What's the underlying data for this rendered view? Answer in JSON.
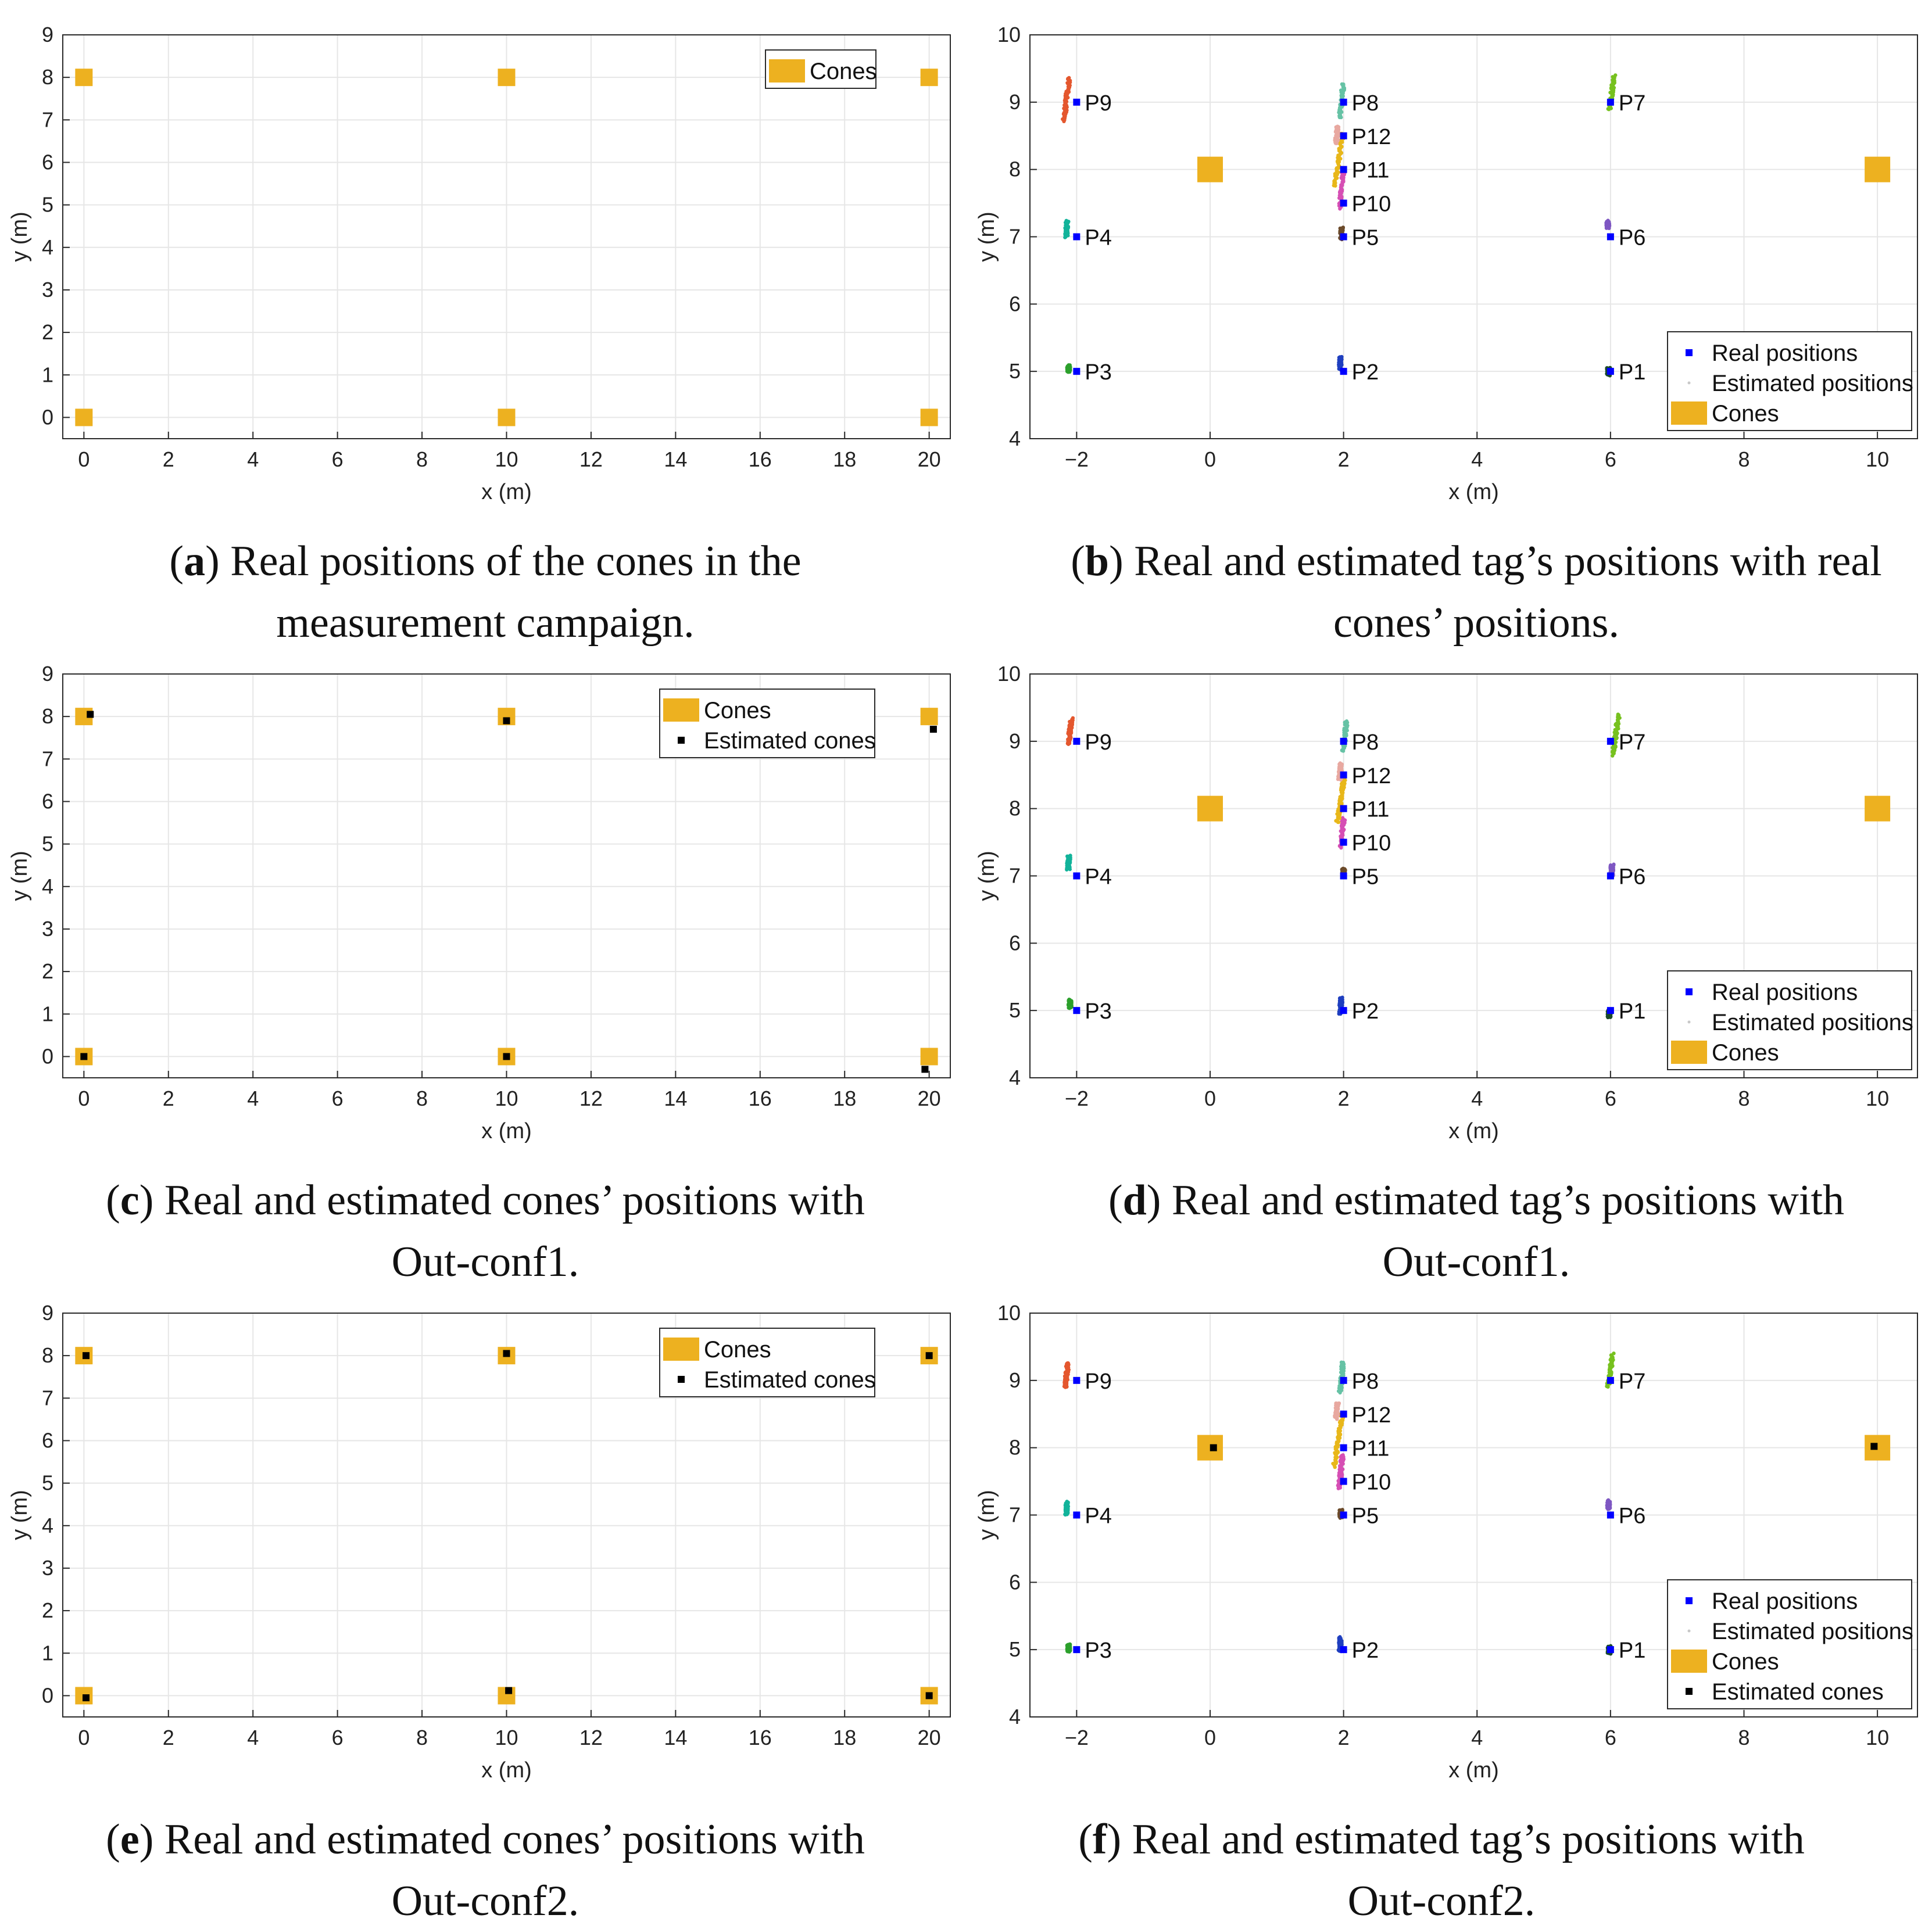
{
  "figure": {
    "captions": [
      {
        "letter": "a",
        "lines": [
          "Real positions of the cones in the",
          "measurement campaign."
        ]
      },
      {
        "letter": "b",
        "lines": [
          "Real and estimated tag’s positions with real",
          "cones’ positions."
        ]
      },
      {
        "letter": "c",
        "lines": [
          "Real and estimated cones’ positions with",
          "Out-conf1."
        ]
      },
      {
        "letter": "d",
        "lines": [
          "Real and estimated tag’s positions with",
          "Out-conf1."
        ]
      },
      {
        "letter": "e",
        "lines": [
          "Real and estimated cones’ positions with",
          "Out-conf2."
        ]
      },
      {
        "letter": "f",
        "lines": [
          "Real and estimated tag’s positions with",
          "Out-conf2."
        ]
      }
    ]
  },
  "colors": {
    "cone": "#EDB120",
    "real": "#0000FF",
    "est_cone": "#000000",
    "series": {
      "P1": "#1a4a2a",
      "P2": "#1f3fbf",
      "P3": "#2ca02c",
      "P4": "#12b39a",
      "P5": "#6b4a2a",
      "P6": "#7e57c2",
      "P7": "#77c11f",
      "P8": "#66c2a5",
      "P9": "#e4572e",
      "P10": "#d64fb4",
      "P11": "#e8b71a",
      "P12": "#e8a8a0"
    }
  },
  "chart_data": [
    {
      "id": "a",
      "type": "scatter",
      "xlabel": "x (m)",
      "ylabel": "y (m)",
      "xlim": [
        -0.5,
        20.5
      ],
      "ylim": [
        -0.5,
        9
      ],
      "xticks": [
        0,
        2,
        4,
        6,
        8,
        10,
        12,
        14,
        16,
        18,
        20
      ],
      "yticks": [
        0,
        1,
        2,
        3,
        4,
        5,
        6,
        7,
        8,
        9
      ],
      "legend": {
        "position": "top-right",
        "entries": [
          "Cones"
        ]
      },
      "cones": [
        [
          0,
          8
        ],
        [
          10,
          8
        ],
        [
          20,
          8
        ],
        [
          0,
          0
        ],
        [
          10,
          0
        ],
        [
          20,
          0
        ]
      ],
      "estimated_cones": []
    },
    {
      "id": "b",
      "type": "scatter",
      "xlabel": "x (m)",
      "ylabel": "y (m)",
      "xlim": [
        -2.7,
        10.6
      ],
      "ylim": [
        4,
        10
      ],
      "xticks": [
        -2,
        0,
        2,
        4,
        6,
        8,
        10
      ],
      "yticks": [
        4,
        5,
        6,
        7,
        8,
        9,
        10
      ],
      "legend": {
        "position": "bottom-right",
        "entries": [
          "Real positions",
          "Estimated positions",
          "Cones"
        ]
      },
      "cones": [
        [
          0,
          8
        ],
        [
          10,
          8
        ]
      ],
      "estimated_cones": [],
      "points": [
        {
          "label": "P1",
          "real": [
            6,
            5
          ],
          "est": [
            5.97,
            5.0
          ],
          "tilt": 0.0,
          "spread": 0.05
        },
        {
          "label": "P2",
          "real": [
            2,
            5
          ],
          "est": [
            1.95,
            5.12
          ],
          "tilt": 0.1,
          "spread": 0.1
        },
        {
          "label": "P3",
          "real": [
            -2,
            5
          ],
          "est": [
            -2.12,
            5.04
          ],
          "tilt": 0.0,
          "spread": 0.05
        },
        {
          "label": "P4",
          "real": [
            -2,
            7
          ],
          "est": [
            -2.15,
            7.12
          ],
          "tilt": 0.1,
          "spread": 0.12
        },
        {
          "label": "P5",
          "real": [
            2,
            7
          ],
          "est": [
            1.97,
            7.05
          ],
          "tilt": 0.0,
          "spread": 0.08
        },
        {
          "label": "P6",
          "real": [
            6,
            7
          ],
          "est": [
            5.96,
            7.18
          ],
          "tilt": 0.0,
          "spread": 0.05
        },
        {
          "label": "P7",
          "real": [
            6,
            9
          ],
          "est": [
            6.02,
            9.15
          ],
          "tilt": 0.3,
          "spread": 0.25
        },
        {
          "label": "P8",
          "real": [
            2,
            9
          ],
          "est": [
            1.97,
            9.02
          ],
          "tilt": 0.2,
          "spread": 0.25
        },
        {
          "label": "P9",
          "real": [
            -2,
            9
          ],
          "est": [
            -2.15,
            9.05
          ],
          "tilt": 0.25,
          "spread": 0.32
        },
        {
          "label": "P10",
          "real": [
            2,
            7.5
          ],
          "est": [
            1.97,
            7.7
          ],
          "tilt": 0.2,
          "spread": 0.28
        },
        {
          "label": "P11",
          "real": [
            2,
            8
          ],
          "est": [
            1.93,
            8.15
          ],
          "tilt": 0.3,
          "spread": 0.4
        },
        {
          "label": "P12",
          "real": [
            2,
            8.5
          ],
          "est": [
            1.9,
            8.52
          ],
          "tilt": 0.2,
          "spread": 0.12
        }
      ]
    },
    {
      "id": "c",
      "type": "scatter",
      "xlabel": "x (m)",
      "ylabel": "y (m)",
      "xlim": [
        -0.5,
        20.5
      ],
      "ylim": [
        -0.5,
        9
      ],
      "xticks": [
        0,
        2,
        4,
        6,
        8,
        10,
        12,
        14,
        16,
        18,
        20
      ],
      "yticks": [
        0,
        1,
        2,
        3,
        4,
        5,
        6,
        7,
        8,
        9
      ],
      "legend": {
        "position": "top-right",
        "entries": [
          "Cones",
          "Estimated cones"
        ]
      },
      "cones": [
        [
          0,
          8
        ],
        [
          10,
          8
        ],
        [
          20,
          8
        ],
        [
          0,
          0
        ],
        [
          10,
          0
        ],
        [
          20,
          0
        ]
      ],
      "estimated_cones": [
        [
          0.15,
          8.05
        ],
        [
          10.0,
          7.9
        ],
        [
          20.1,
          7.7
        ],
        [
          0.0,
          0.0
        ],
        [
          10.0,
          0.0
        ],
        [
          19.9,
          -0.3
        ]
      ]
    },
    {
      "id": "d",
      "type": "scatter",
      "xlabel": "x (m)",
      "ylabel": "y (m)",
      "xlim": [
        -2.7,
        10.6
      ],
      "ylim": [
        4,
        10
      ],
      "xticks": [
        -2,
        0,
        2,
        4,
        6,
        8,
        10
      ],
      "yticks": [
        4,
        5,
        6,
        7,
        8,
        9,
        10
      ],
      "legend": {
        "position": "bottom-right",
        "entries": [
          "Real positions",
          "Estimated positions",
          "Cones"
        ]
      },
      "cones": [
        [
          0,
          8
        ],
        [
          10,
          8
        ]
      ],
      "estimated_cones": [],
      "points": [
        {
          "label": "P1",
          "real": [
            6,
            5
          ],
          "est": [
            5.98,
            4.95
          ],
          "tilt": 0.0,
          "spread": 0.05
        },
        {
          "label": "P2",
          "real": [
            2,
            5
          ],
          "est": [
            1.96,
            5.08
          ],
          "tilt": 0.1,
          "spread": 0.12
        },
        {
          "label": "P3",
          "real": [
            -2,
            5
          ],
          "est": [
            -2.1,
            5.1
          ],
          "tilt": 0.0,
          "spread": 0.06
        },
        {
          "label": "P4",
          "real": [
            -2,
            7
          ],
          "est": [
            -2.12,
            7.2
          ],
          "tilt": 0.1,
          "spread": 0.1
        },
        {
          "label": "P5",
          "real": [
            2,
            7
          ],
          "est": [
            2.0,
            7.05
          ],
          "tilt": 0.0,
          "spread": 0.06
        },
        {
          "label": "P6",
          "real": [
            6,
            7
          ],
          "est": [
            6.02,
            7.08
          ],
          "tilt": 0.1,
          "spread": 0.08
        },
        {
          "label": "P7",
          "real": [
            6,
            9
          ],
          "est": [
            6.08,
            9.1
          ],
          "tilt": 0.3,
          "spread": 0.3
        },
        {
          "label": "P8",
          "real": [
            2,
            9
          ],
          "est": [
            2.02,
            9.08
          ],
          "tilt": 0.2,
          "spread": 0.22
        },
        {
          "label": "P9",
          "real": [
            -2,
            9
          ],
          "est": [
            -2.1,
            9.15
          ],
          "tilt": 0.25,
          "spread": 0.2
        },
        {
          "label": "P10",
          "real": [
            2,
            7.5
          ],
          "est": [
            1.98,
            7.65
          ],
          "tilt": 0.2,
          "spread": 0.22
        },
        {
          "label": "P11",
          "real": [
            2,
            8
          ],
          "est": [
            1.96,
            8.15
          ],
          "tilt": 0.3,
          "spread": 0.35
        },
        {
          "label": "P12",
          "real": [
            2,
            8.5
          ],
          "est": [
            1.95,
            8.55
          ],
          "tilt": 0.2,
          "spread": 0.12
        }
      ]
    },
    {
      "id": "e",
      "type": "scatter",
      "xlabel": "x (m)",
      "ylabel": "y (m)",
      "xlim": [
        -0.5,
        20.5
      ],
      "ylim": [
        -0.5,
        9
      ],
      "xticks": [
        0,
        2,
        4,
        6,
        8,
        10,
        12,
        14,
        16,
        18,
        20
      ],
      "yticks": [
        0,
        1,
        2,
        3,
        4,
        5,
        6,
        7,
        8,
        9
      ],
      "legend": {
        "position": "top-right",
        "entries": [
          "Cones",
          "Estimated cones"
        ]
      },
      "cones": [
        [
          0,
          8
        ],
        [
          10,
          8
        ],
        [
          20,
          8
        ],
        [
          0,
          0
        ],
        [
          10,
          0
        ],
        [
          20,
          0
        ]
      ],
      "estimated_cones": [
        [
          0.05,
          8.0
        ],
        [
          10.0,
          8.05
        ],
        [
          20.0,
          8.0
        ],
        [
          0.05,
          -0.05
        ],
        [
          10.05,
          0.12
        ],
        [
          20.0,
          0.0
        ]
      ]
    },
    {
      "id": "f",
      "type": "scatter",
      "xlabel": "x (m)",
      "ylabel": "y (m)",
      "xlim": [
        -2.7,
        10.6
      ],
      "ylim": [
        4,
        10
      ],
      "xticks": [
        -2,
        0,
        2,
        4,
        6,
        8,
        10
      ],
      "yticks": [
        4,
        5,
        6,
        7,
        8,
        9,
        10
      ],
      "legend": {
        "position": "bottom-right",
        "entries": [
          "Real positions",
          "Estimated positions",
          "Cones",
          "Estimated cones"
        ]
      },
      "cones": [
        [
          0,
          8
        ],
        [
          10,
          8
        ]
      ],
      "estimated_cones": [
        [
          0.05,
          8.0
        ],
        [
          9.95,
          8.02
        ]
      ],
      "points": [
        {
          "label": "P1",
          "real": [
            6,
            5
          ],
          "est": [
            5.98,
            5.0
          ],
          "tilt": 0.0,
          "spread": 0.05
        },
        {
          "label": "P2",
          "real": [
            2,
            5
          ],
          "est": [
            1.95,
            5.08
          ],
          "tilt": 0.1,
          "spread": 0.1
        },
        {
          "label": "P3",
          "real": [
            -2,
            5
          ],
          "est": [
            -2.12,
            5.03
          ],
          "tilt": 0.0,
          "spread": 0.05
        },
        {
          "label": "P4",
          "real": [
            -2,
            7
          ],
          "est": [
            -2.15,
            7.1
          ],
          "tilt": 0.1,
          "spread": 0.1
        },
        {
          "label": "P5",
          "real": [
            2,
            7
          ],
          "est": [
            1.96,
            7.02
          ],
          "tilt": 0.0,
          "spread": 0.05
        },
        {
          "label": "P6",
          "real": [
            6,
            7
          ],
          "est": [
            5.97,
            7.15
          ],
          "tilt": 0.0,
          "spread": 0.06
        },
        {
          "label": "P7",
          "real": [
            6,
            9
          ],
          "est": [
            6.0,
            9.15
          ],
          "tilt": 0.3,
          "spread": 0.25
        },
        {
          "label": "P8",
          "real": [
            2,
            9
          ],
          "est": [
            1.97,
            9.05
          ],
          "tilt": 0.2,
          "spread": 0.22
        },
        {
          "label": "P9",
          "real": [
            -2,
            9
          ],
          "est": [
            -2.15,
            9.08
          ],
          "tilt": 0.25,
          "spread": 0.18
        },
        {
          "label": "P10",
          "real": [
            2,
            7.5
          ],
          "est": [
            1.96,
            7.65
          ],
          "tilt": 0.2,
          "spread": 0.25
        },
        {
          "label": "P11",
          "real": [
            2,
            8
          ],
          "est": [
            1.92,
            8.12
          ],
          "tilt": 0.3,
          "spread": 0.4
        },
        {
          "label": "P12",
          "real": [
            2,
            8.5
          ],
          "est": [
            1.9,
            8.55
          ],
          "tilt": 0.2,
          "spread": 0.12
        }
      ]
    }
  ]
}
